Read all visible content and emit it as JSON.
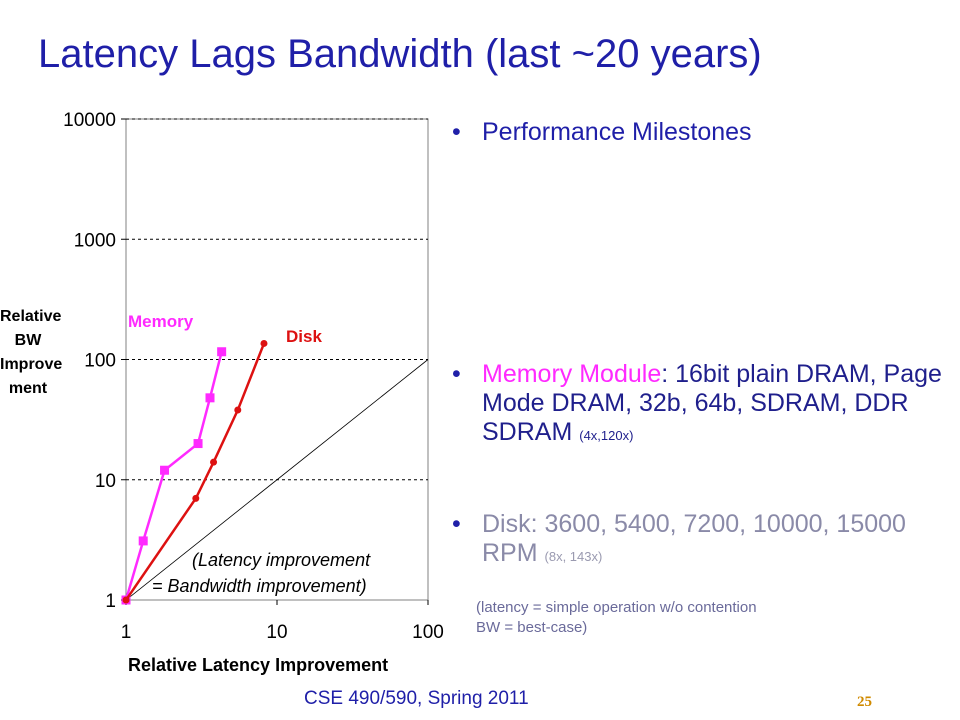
{
  "slide": {
    "title": "Latency Lags Bandwidth (last ~20 years)",
    "footer": "CSE 490/590, Spring 2011",
    "page_number": "25"
  },
  "bullets": {
    "milestones": "Performance Milestones",
    "memory_label": "Memory Module",
    "memory_text": ": 16bit plain DRAM, Page Mode DRAM, 32b, 64b, SDRAM, DDR SDRAM",
    "memory_factors": "(4x,120x)",
    "disk_label": "Disk",
    "disk_text": ": 3600, 5400, 7200, 10000, 15000 RPM",
    "disk_factors": "(8x, 143x)",
    "note_line1": "(latency = simple operation w/o contention",
    "note_line2": "BW = best-case)"
  },
  "colors": {
    "memory": "#ff2aff",
    "disk": "#dd1111",
    "title": "#1f1fa8"
  },
  "chart_data": {
    "type": "line",
    "xscale": "log",
    "yscale": "log",
    "xlim": [
      1,
      100
    ],
    "ylim": [
      1,
      10000
    ],
    "xticks": [
      "1",
      "10",
      "100"
    ],
    "yticks": [
      "1",
      "10",
      "100",
      "1000",
      "10000"
    ],
    "xlabel": "Relative Latency Improvement",
    "ylabel_lines": [
      "Relative",
      "BW",
      "Improve",
      "ment"
    ],
    "grid": "dashed horizontal",
    "series": [
      {
        "name": "Memory",
        "marker": "square",
        "x": [
          1,
          1.3,
          1.8,
          3.0,
          3.6,
          4.3
        ],
        "y": [
          1,
          3.1,
          12,
          20,
          48,
          116
        ]
      },
      {
        "name": "Disk",
        "marker": "circle",
        "x": [
          1,
          2.9,
          3.8,
          5.5,
          8.2
        ],
        "y": [
          1,
          7,
          14,
          38,
          136
        ]
      }
    ],
    "reference_line": {
      "label_line1": "(Latency improvement",
      "label_line2": "= Bandwidth improvement)"
    }
  }
}
